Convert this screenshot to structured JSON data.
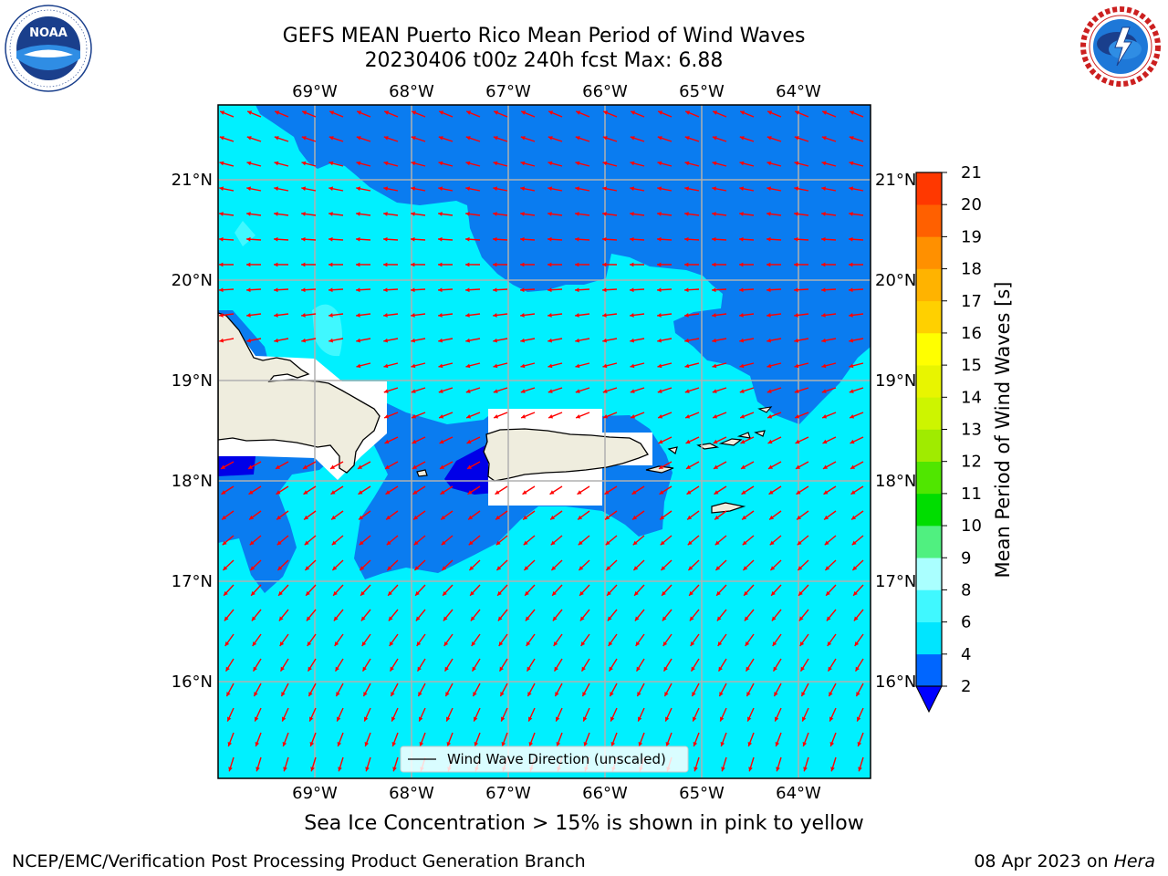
{
  "header": {
    "title_line1": "GEFS MEAN Puerto Rico Mean Period of Wind Waves",
    "title_line2": "20230406 t00z 240h fcst   Max: 6.88"
  },
  "logos": {
    "noaa": {
      "text": "NOAA",
      "ring_text": "NATIONAL OCEANIC AND ATMOSPHERIC ADMINISTRATION · U.S. DEPARTMENT OF COMMERCE"
    },
    "nws": {
      "ring_text": "NATIONAL WEATHER SERVICE"
    }
  },
  "map": {
    "lon_labels": [
      "69°W",
      "68°W",
      "67°W",
      "66°W",
      "65°W",
      "64°W"
    ],
    "lat_labels": [
      "21°N",
      "20°N",
      "19°N",
      "18°N",
      "17°N",
      "16°N"
    ],
    "legend_label": "Wind Wave Direction (unscaled)",
    "arrow_color": "#ff0000",
    "land_color": "#efedde",
    "grid_color": "#b0b0b0"
  },
  "colorbar": {
    "label": "Mean Period of Wind Waves [s]",
    "ticks": [
      "2",
      "4",
      "6",
      "8",
      "9",
      "10",
      "11",
      "12",
      "13",
      "14",
      "15",
      "16",
      "17",
      "18",
      "19",
      "20",
      "21"
    ],
    "colors": [
      "#0066ff",
      "#00e5ff",
      "#40f8ff",
      "#aaffff",
      "#50f080",
      "#00dd00",
      "#50e600",
      "#a0eb00",
      "#cdf500",
      "#e8f500",
      "#ffff00",
      "#ffd000",
      "#ffb300",
      "#ff9000",
      "#ff6000",
      "#ff3800",
      "#ff0000"
    ],
    "extend_color": "#0000ff"
  },
  "captions": {
    "sea_ice": "Sea Ice Concentration > 15% is shown in pink to yellow",
    "branch": "NCEP/EMC/Verification Post Processing Product Generation Branch",
    "date": "08 Apr 2023 on ",
    "machine": "Hera"
  }
}
